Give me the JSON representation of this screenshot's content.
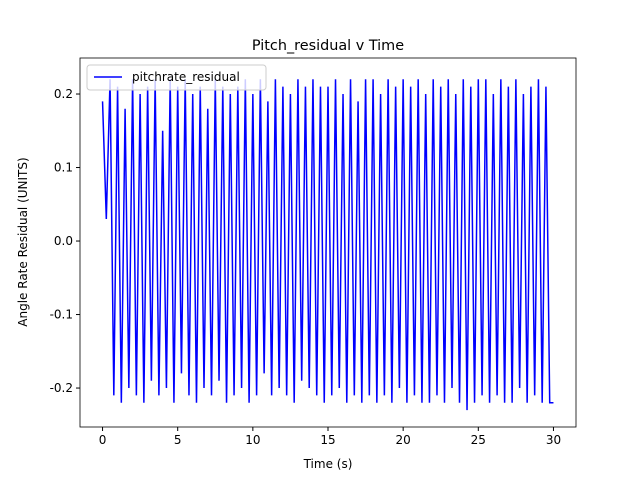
{
  "chart_data": {
    "type": "line",
    "title": "Pitch_residual v Time",
    "xlabel": "Time (s)",
    "ylabel": "Angle Rate Residual (UNITS)",
    "x": [
      0,
      0.25,
      0.5,
      0.75,
      1,
      1.25,
      1.5,
      1.75,
      2,
      2.25,
      2.5,
      2.75,
      3,
      3.25,
      3.5,
      3.75,
      4,
      4.25,
      4.5,
      4.75,
      5,
      5.25,
      5.5,
      5.75,
      6,
      6.25,
      6.5,
      6.75,
      7,
      7.25,
      7.5,
      7.75,
      8,
      8.25,
      8.5,
      8.75,
      9,
      9.25,
      9.5,
      9.75,
      10,
      10.25,
      10.5,
      10.75,
      11,
      11.25,
      11.5,
      11.75,
      12,
      12.25,
      12.5,
      12.75,
      13,
      13.25,
      13.5,
      13.75,
      14,
      14.25,
      14.5,
      14.75,
      15,
      15.25,
      15.5,
      15.75,
      16,
      16.25,
      16.5,
      16.75,
      17,
      17.25,
      17.5,
      17.75,
      18,
      18.25,
      18.5,
      18.75,
      19,
      19.25,
      19.5,
      19.75,
      20,
      20.25,
      20.5,
      20.75,
      21,
      21.25,
      21.5,
      21.75,
      22,
      22.25,
      22.5,
      22.75,
      23,
      23.25,
      23.5,
      23.75,
      24,
      24.25,
      24.5,
      24.75,
      25,
      25.25,
      25.5,
      25.75,
      26,
      26.25,
      26.5,
      26.75,
      27,
      27.25,
      27.5,
      27.75,
      28,
      28.25,
      28.5,
      28.75,
      29,
      29.25,
      29.5,
      29.75,
      30
    ],
    "series": [
      {
        "name": "pitchrate_residual",
        "color": "#0000ff",
        "values": [
          0.19,
          0.03,
          0.22,
          -0.21,
          0.21,
          -0.22,
          0.18,
          -0.2,
          0.22,
          -0.21,
          0.2,
          -0.22,
          0.21,
          -0.19,
          0.22,
          -0.21,
          0.15,
          -0.2,
          0.22,
          -0.22,
          0.21,
          -0.18,
          0.22,
          -0.21,
          0.2,
          -0.22,
          0.21,
          -0.2,
          0.18,
          -0.21,
          0.22,
          -0.19,
          0.21,
          -0.22,
          0.2,
          -0.21,
          0.21,
          -0.2,
          0.22,
          -0.22,
          0.2,
          -0.21,
          0.22,
          -0.18,
          0.19,
          -0.21,
          0.22,
          -0.2,
          0.21,
          -0.21,
          0.2,
          -0.22,
          0.22,
          -0.19,
          0.21,
          -0.2,
          0.22,
          -0.21,
          0.21,
          -0.22,
          0.21,
          -0.21,
          0.22,
          -0.2,
          0.2,
          -0.22,
          0.22,
          -0.21,
          0.19,
          -0.22,
          0.22,
          -0.21,
          0.22,
          -0.22,
          0.2,
          -0.21,
          0.22,
          -0.22,
          0.21,
          -0.2,
          0.22,
          -0.22,
          0.21,
          -0.21,
          0.22,
          -0.22,
          0.2,
          -0.22,
          0.22,
          -0.21,
          0.21,
          -0.22,
          0.22,
          -0.2,
          0.2,
          -0.22,
          0.22,
          -0.23,
          0.21,
          -0.22,
          0.22,
          -0.21,
          0.22,
          -0.22,
          0.2,
          -0.21,
          0.22,
          -0.22,
          0.21,
          -0.22,
          0.22,
          -0.2,
          0.2,
          -0.22,
          0.21,
          -0.21,
          0.22,
          -0.22,
          0.21,
          -0.22,
          -0.22
        ]
      }
    ],
    "xlim": [
      -1.5,
      31.5
    ],
    "ylim": [
      -0.253,
      0.249
    ],
    "xticks": [
      0,
      5,
      10,
      15,
      20,
      25,
      30
    ],
    "yticks": [
      -0.2,
      -0.1,
      {
        "value": 0,
        "label": "0.0"
      },
      0.1,
      0.2
    ],
    "legend": "upper left",
    "grid": false
  }
}
